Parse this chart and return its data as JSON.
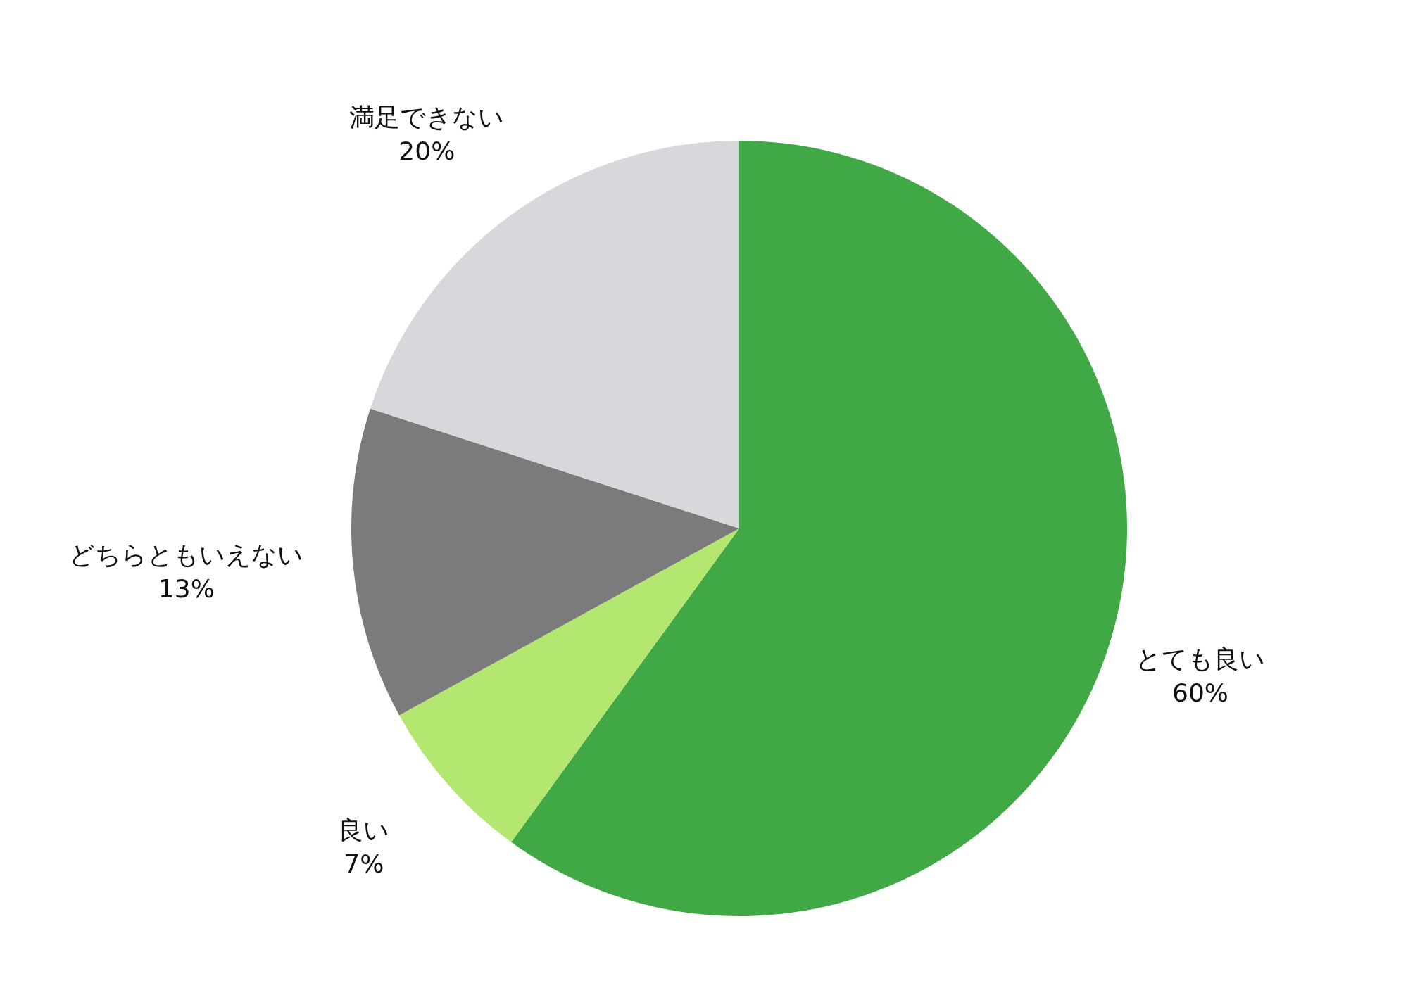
{
  "chart_data": {
    "type": "pie",
    "categories": [
      "とても良い",
      "良い",
      "どちらともいえない",
      "満足できない"
    ],
    "values": [
      60,
      7,
      13,
      20
    ],
    "colors": [
      "#41a846",
      "#b3e76f",
      "#7b7b7b",
      "#d7d8db"
    ],
    "value_labels": [
      "60%",
      "7%",
      "13%",
      "20%"
    ],
    "legend": false
  }
}
